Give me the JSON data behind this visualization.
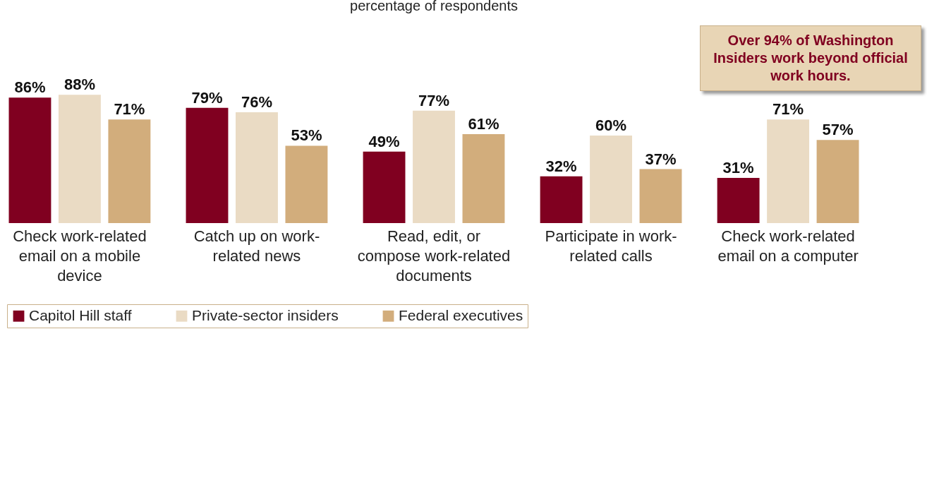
{
  "chart_data": {
    "type": "bar",
    "title": "percentage of respondents",
    "categories": [
      "Check work-related email on a mobile device",
      "Catch up on work-related news",
      "Read, edit, or compose work-related documents",
      "Participate in work-related calls",
      "Check work-related email on a computer"
    ],
    "series": [
      {
        "name": "Capitol Hill staff",
        "color": "#800020",
        "values": [
          86,
          79,
          49,
          32,
          31
        ],
        "value_labels": [
          "86%",
          "79%",
          "49%",
          "32%",
          "31%"
        ]
      },
      {
        "name": "Private-sector insiders",
        "color": "#eadbc4",
        "values": [
          88,
          76,
          77,
          60,
          71
        ],
        "value_labels": [
          "88%",
          "76%",
          "77%",
          "60%",
          "71%"
        ]
      },
      {
        "name": "Federal executives",
        "color": "#d2ad7c",
        "values": [
          71,
          53,
          61,
          37,
          57
        ],
        "value_labels": [
          "71%",
          "53%",
          "61%",
          "37%",
          "57%"
        ]
      }
    ],
    "annotations": [
      "Over 94% of Washington Insiders work beyond official work hours."
    ],
    "legend": "bottom",
    "grid": false
  }
}
